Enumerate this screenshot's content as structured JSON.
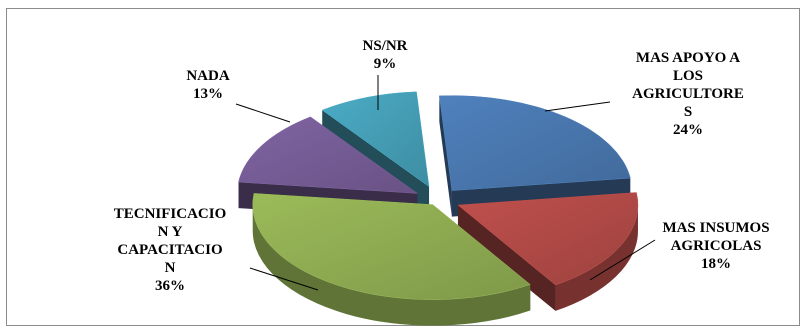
{
  "chart_data": {
    "type": "pie",
    "title": "",
    "style": "3d-exploded",
    "slices": [
      {
        "label_lines": [
          "MAS APOYO A",
          "LOS",
          "AGRICULTORE",
          "S"
        ],
        "value": 24,
        "pct_text": "24%",
        "color": "#4f81bd"
      },
      {
        "label_lines": [
          "MAS INSUMOS",
          "AGRICOLAS"
        ],
        "value": 18,
        "pct_text": "18%",
        "color": "#c0504d"
      },
      {
        "label_lines": [
          "TECNIFICACIO",
          "N Y",
          "CAPACITACIO",
          "N"
        ],
        "value": 36,
        "pct_text": "36%",
        "color": "#9bbb59"
      },
      {
        "label_lines": [
          "NADA"
        ],
        "value": 13,
        "pct_text": "13%",
        "color": "#8064a2"
      },
      {
        "label_lines": [
          "NS/NR"
        ],
        "value": 9,
        "pct_text": "9%",
        "color": "#4bacc6"
      }
    ]
  }
}
